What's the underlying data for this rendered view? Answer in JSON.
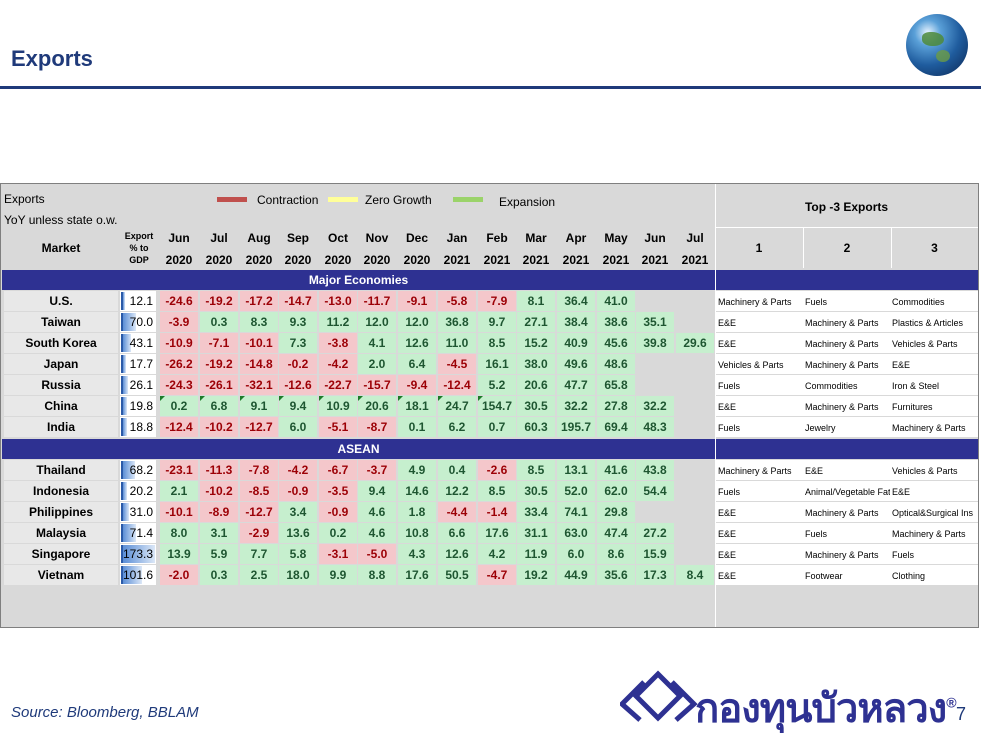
{
  "page": {
    "title": "Exports",
    "source": "Source: Bloomberg, BBLAM",
    "page_number": "7",
    "brand": "กองทุนบัวหลวง",
    "brand_mark": "®"
  },
  "table": {
    "title": "Exports",
    "subtitle": "YoY unless state o.w.",
    "legend": [
      {
        "label": "Contraction",
        "color": "#c0504d"
      },
      {
        "label": "Zero Growth",
        "color": "#ffff99"
      },
      {
        "label": "Expansion",
        "color": "#9bd36a"
      }
    ],
    "col_market": "Market",
    "col_gdp": [
      "Export",
      "% to",
      "GDP"
    ],
    "months": [
      "Jun",
      "Jul",
      "Aug",
      "Sep",
      "Oct",
      "Nov",
      "Dec",
      "Jan",
      "Feb",
      "Mar",
      "Apr",
      "May",
      "Jun",
      "Jul"
    ],
    "years": [
      "2020",
      "2020",
      "2020",
      "2020",
      "2020",
      "2020",
      "2020",
      "2021",
      "2021",
      "2021",
      "2021",
      "2021",
      "2021",
      "2021"
    ],
    "top_header": "Top -3 Exports",
    "top_cols": [
      "1",
      "2",
      "3"
    ],
    "sections": [
      {
        "label": "Major Economies",
        "rows": [
          {
            "market": "U.S.",
            "gdp": "12.1",
            "gdp_pct": 0.07,
            "values": [
              "-24.6",
              "-19.2",
              "-17.2",
              "-14.7",
              "-13.0",
              "-11.7",
              "-9.1",
              "-5.8",
              "-7.9",
              "8.1",
              "36.4",
              "41.0",
              "",
              ""
            ],
            "top": [
              "Machinery & Parts",
              "Fuels",
              "Commodities"
            ]
          },
          {
            "market": "Taiwan",
            "gdp": "70.0",
            "gdp_pct": 0.4,
            "values": [
              "-3.9",
              "0.3",
              "8.3",
              "9.3",
              "11.2",
              "12.0",
              "12.0",
              "36.8",
              "9.7",
              "27.1",
              "38.4",
              "38.6",
              "35.1",
              ""
            ],
            "top": [
              "E&E",
              "Machinery & Parts",
              "Plastics & Articles"
            ]
          },
          {
            "market": "South Korea",
            "gdp": "43.1",
            "gdp_pct": 0.25,
            "values": [
              "-10.9",
              "-7.1",
              "-10.1",
              "7.3",
              "-3.8",
              "4.1",
              "12.6",
              "11.0",
              "8.5",
              "15.2",
              "40.9",
              "45.6",
              "39.8",
              "29.6"
            ],
            "top": [
              "E&E",
              "Machinery & Parts",
              "Vehicles & Parts"
            ]
          },
          {
            "market": "Japan",
            "gdp": "17.7",
            "gdp_pct": 0.1,
            "values": [
              "-26.2",
              "-19.2",
              "-14.8",
              "-0.2",
              "-4.2",
              "2.0",
              "6.4",
              "-4.5",
              "16.1",
              "38.0",
              "49.6",
              "48.6",
              "",
              ""
            ],
            "top": [
              "Vehicles & Parts",
              "Machinery & Parts",
              "E&E"
            ]
          },
          {
            "market": "Russia",
            "gdp": "26.1",
            "gdp_pct": 0.15,
            "values": [
              "-24.3",
              "-26.1",
              "-32.1",
              "-12.6",
              "-22.7",
              "-15.7",
              "-9.4",
              "-12.4",
              "5.2",
              "20.6",
              "47.7",
              "65.8",
              "",
              ""
            ],
            "top": [
              "Fuels",
              "Commodities",
              "Iron & Steel"
            ]
          },
          {
            "market": "China",
            "gdp": "19.8",
            "gdp_pct": 0.11,
            "values": [
              "0.2",
              "6.8",
              "9.1",
              "9.4",
              "10.9",
              "20.6",
              "18.1",
              "24.7",
              "154.7",
              "30.5",
              "32.2",
              "27.8",
              "32.2",
              ""
            ],
            "top": [
              "E&E",
              "Machinery & Parts",
              "Furnitures"
            ]
          },
          {
            "market": "India",
            "gdp": "18.8",
            "gdp_pct": 0.11,
            "values": [
              "-12.4",
              "-10.2",
              "-12.7",
              "6.0",
              "-5.1",
              "-8.7",
              "0.1",
              "6.2",
              "0.7",
              "60.3",
              "195.7",
              "69.4",
              "48.3",
              ""
            ],
            "top": [
              "Fuels",
              "Jewelry",
              "Machinery & Parts"
            ]
          }
        ]
      },
      {
        "label": "ASEAN",
        "rows": [
          {
            "market": "Thailand",
            "gdp": "68.2",
            "gdp_pct": 0.39,
            "values": [
              "-23.1",
              "-11.3",
              "-7.8",
              "-4.2",
              "-6.7",
              "-3.7",
              "4.9",
              "0.4",
              "-2.6",
              "8.5",
              "13.1",
              "41.6",
              "43.8",
              ""
            ],
            "top": [
              "Machinery & Parts",
              "E&E",
              "Vehicles & Parts"
            ]
          },
          {
            "market": "Indonesia",
            "gdp": "20.2",
            "gdp_pct": 0.12,
            "values": [
              "2.1",
              "-10.2",
              "-8.5",
              "-0.9",
              "-3.5",
              "9.4",
              "14.6",
              "12.2",
              "8.5",
              "30.5",
              "52.0",
              "62.0",
              "54.4",
              ""
            ],
            "top": [
              "Fuels",
              "Animal/Vegetable Fats",
              "E&E"
            ]
          },
          {
            "market": "Philippines",
            "gdp": "31.0",
            "gdp_pct": 0.18,
            "values": [
              "-10.1",
              "-8.9",
              "-12.7",
              "3.4",
              "-0.9",
              "4.6",
              "1.8",
              "-4.4",
              "-1.4",
              "33.4",
              "74.1",
              "29.8",
              "",
              ""
            ],
            "top": [
              "E&E",
              "Machinery & Parts",
              "Optical&Surgical Ins"
            ]
          },
          {
            "market": "Malaysia",
            "gdp": "71.4",
            "gdp_pct": 0.41,
            "values": [
              "8.0",
              "3.1",
              "-2.9",
              "13.6",
              "0.2",
              "4.6",
              "10.8",
              "6.6",
              "17.6",
              "31.1",
              "63.0",
              "47.4",
              "27.2",
              ""
            ],
            "top": [
              "E&E",
              "Fuels",
              "Machinery & Parts"
            ]
          },
          {
            "market": "Singapore",
            "gdp": "173.3",
            "gdp_pct": 1.0,
            "values": [
              "13.9",
              "5.9",
              "7.7",
              "5.8",
              "-3.1",
              "-5.0",
              "4.3",
              "12.6",
              "4.2",
              "11.9",
              "6.0",
              "8.6",
              "15.9",
              ""
            ],
            "top": [
              "E&E",
              "Machinery & Parts",
              "Fuels"
            ]
          },
          {
            "market": "Vietnam",
            "gdp": "101.6",
            "gdp_pct": 0.59,
            "values": [
              "-2.0",
              "0.3",
              "2.5",
              "18.0",
              "9.9",
              "8.8",
              "17.6",
              "50.5",
              "-4.7",
              "19.2",
              "44.9",
              "35.6",
              "17.3",
              "8.4"
            ],
            "top": [
              "E&E",
              "Footwear",
              "Clothing"
            ]
          }
        ]
      }
    ]
  }
}
